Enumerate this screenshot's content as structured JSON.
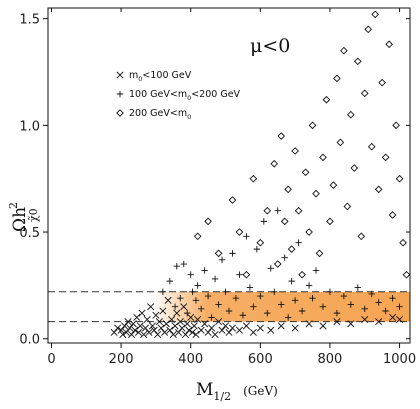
{
  "chart_data": {
    "type": "scatter",
    "title": "",
    "annotation": "μ<0",
    "xlabel": {
      "main": "M",
      "sub": "1/2",
      "unit": "(GeV)"
    },
    "ylabel": {
      "main": "Ωh",
      "sub": "χ̃0",
      "sup": "2"
    },
    "xlim": [
      -10,
      1030
    ],
    "ylim": [
      -0.02,
      1.55
    ],
    "xticks": [
      0,
      200,
      400,
      600,
      800,
      1000
    ],
    "yticks": [
      0.0,
      0.5,
      1.0,
      1.5
    ],
    "xtick_labels": [
      "0",
      "200",
      "400",
      "600",
      "800",
      "1000"
    ],
    "ytick_labels": [
      "0.0",
      "0.5",
      "1.0",
      "1.5"
    ],
    "grid": false,
    "legend_position": "top-left",
    "band": {
      "y_low": 0.08,
      "y_high": 0.22,
      "x_start": 300,
      "x_end": 1030,
      "color": "#f5a04a"
    },
    "reference_lines": [
      0.08,
      0.22
    ],
    "legend": [
      {
        "marker": "x",
        "label": "m",
        "sub": "0",
        "suffix": "<100 GeV"
      },
      {
        "marker": "plus",
        "label": "100 GeV<m",
        "sub": "0",
        "suffix": "<200 GeV"
      },
      {
        "marker": "diamond",
        "label": "200 GeV<m",
        "sub": "0",
        "suffix": ""
      }
    ],
    "series": [
      {
        "marker": "x",
        "points": [
          [
            180,
            0.03
          ],
          [
            190,
            0.05
          ],
          [
            200,
            0.04
          ],
          [
            205,
            0.02
          ],
          [
            210,
            0.06
          ],
          [
            215,
            0.03
          ],
          [
            220,
            0.08
          ],
          [
            225,
            0.05
          ],
          [
            230,
            0.02
          ],
          [
            235,
            0.07
          ],
          [
            240,
            0.04
          ],
          [
            245,
            0.1
          ],
          [
            250,
            0.03
          ],
          [
            255,
            0.06
          ],
          [
            260,
            0.12
          ],
          [
            265,
            0.02
          ],
          [
            270,
            0.05
          ],
          [
            275,
            0.09
          ],
          [
            280,
            0.03
          ],
          [
            285,
            0.15
          ],
          [
            290,
            0.06
          ],
          [
            295,
            0.04
          ],
          [
            300,
            0.11
          ],
          [
            305,
            0.02
          ],
          [
            310,
            0.08
          ],
          [
            315,
            0.05
          ],
          [
            320,
            0.13
          ],
          [
            325,
            0.03
          ],
          [
            330,
            0.07
          ],
          [
            335,
            0.18
          ],
          [
            340,
            0.04
          ],
          [
            345,
            0.09
          ],
          [
            350,
            0.02
          ],
          [
            355,
            0.06
          ],
          [
            360,
            0.12
          ],
          [
            365,
            0.03
          ],
          [
            370,
            0.08
          ],
          [
            375,
            0.05
          ],
          [
            380,
            0.15
          ],
          [
            385,
            0.02
          ],
          [
            390,
            0.07
          ],
          [
            395,
            0.04
          ],
          [
            400,
            0.1
          ],
          [
            405,
            0.03
          ],
          [
            410,
            0.06
          ],
          [
            415,
            0.02
          ],
          [
            420,
            0.09
          ],
          [
            430,
            0.04
          ],
          [
            440,
            0.07
          ],
          [
            450,
            0.03
          ],
          [
            460,
            0.05
          ],
          [
            470,
            0.02
          ],
          [
            480,
            0.08
          ],
          [
            490,
            0.04
          ],
          [
            500,
            0.06
          ],
          [
            510,
            0.03
          ],
          [
            520,
            0.05
          ],
          [
            540,
            0.04
          ],
          [
            560,
            0.06
          ],
          [
            580,
            0.03
          ],
          [
            600,
            0.05
          ],
          [
            630,
            0.04
          ],
          [
            660,
            0.06
          ],
          [
            700,
            0.05
          ],
          [
            740,
            0.07
          ],
          [
            780,
            0.06
          ],
          [
            820,
            0.08
          ],
          [
            860,
            0.07
          ],
          [
            900,
            0.09
          ],
          [
            940,
            0.08
          ],
          [
            980,
            0.1
          ],
          [
            1000,
            0.09
          ]
        ]
      },
      {
        "marker": "plus",
        "points": [
          [
            320,
            0.22
          ],
          [
            340,
            0.27
          ],
          [
            355,
            0.15
          ],
          [
            360,
            0.34
          ],
          [
            370,
            0.19
          ],
          [
            380,
            0.35
          ],
          [
            390,
            0.12
          ],
          [
            400,
            0.3
          ],
          [
            405,
            0.22
          ],
          [
            415,
            0.18
          ],
          [
            420,
            0.25
          ],
          [
            430,
            0.14
          ],
          [
            440,
            0.32
          ],
          [
            450,
            0.2
          ],
          [
            460,
            0.1
          ],
          [
            470,
            0.28
          ],
          [
            480,
            0.16
          ],
          [
            490,
            0.37
          ],
          [
            500,
            0.22
          ],
          [
            510,
            0.13
          ],
          [
            520,
            0.4
          ],
          [
            530,
            0.19
          ],
          [
            540,
            0.3
          ],
          [
            550,
            0.11
          ],
          [
            560,
            0.48
          ],
          [
            570,
            0.24
          ],
          [
            580,
            0.15
          ],
          [
            590,
            0.42
          ],
          [
            600,
            0.2
          ],
          [
            610,
            0.55
          ],
          [
            620,
            0.12
          ],
          [
            630,
            0.33
          ],
          [
            640,
            0.22
          ],
          [
            650,
            0.6
          ],
          [
            660,
            0.16
          ],
          [
            670,
            0.38
          ],
          [
            680,
            0.1
          ],
          [
            690,
            0.27
          ],
          [
            700,
            0.18
          ],
          [
            710,
            0.45
          ],
          [
            720,
            0.13
          ],
          [
            740,
            0.25
          ],
          [
            750,
            0.19
          ],
          [
            760,
            0.32
          ],
          [
            780,
            0.15
          ],
          [
            800,
            0.22
          ],
          [
            820,
            0.12
          ],
          [
            840,
            0.2
          ],
          [
            860,
            0.16
          ],
          [
            880,
            0.24
          ],
          [
            900,
            0.14
          ],
          [
            920,
            0.21
          ],
          [
            940,
            0.17
          ],
          [
            960,
            0.13
          ],
          [
            980,
            0.19
          ],
          [
            1000,
            0.15
          ]
        ]
      },
      {
        "marker": "diamond",
        "points": [
          [
            420,
            0.48
          ],
          [
            450,
            0.55
          ],
          [
            480,
            0.4
          ],
          [
            520,
            0.65
          ],
          [
            540,
            0.5
          ],
          [
            560,
            0.3
          ],
          [
            580,
            0.75
          ],
          [
            600,
            0.45
          ],
          [
            620,
            0.6
          ],
          [
            640,
            0.82
          ],
          [
            650,
            0.35
          ],
          [
            660,
            0.95
          ],
          [
            670,
            0.55
          ],
          [
            680,
            0.7
          ],
          [
            690,
            0.42
          ],
          [
            700,
            0.88
          ],
          [
            710,
            0.6
          ],
          [
            720,
            0.3
          ],
          [
            730,
            0.78
          ],
          [
            740,
            0.5
          ],
          [
            750,
            1.0
          ],
          [
            760,
            0.68
          ],
          [
            770,
            0.4
          ],
          [
            780,
            0.85
          ],
          [
            790,
            1.12
          ],
          [
            800,
            0.55
          ],
          [
            810,
            0.72
          ],
          [
            820,
            1.22
          ],
          [
            830,
            0.92
          ],
          [
            840,
            1.35
          ],
          [
            850,
            0.62
          ],
          [
            860,
            1.05
          ],
          [
            870,
            0.8
          ],
          [
            880,
            1.3
          ],
          [
            890,
            0.48
          ],
          [
            900,
            1.15
          ],
          [
            910,
            1.45
          ],
          [
            920,
            0.9
          ],
          [
            930,
            1.52
          ],
          [
            940,
            0.7
          ],
          [
            950,
            1.2
          ],
          [
            960,
            0.85
          ],
          [
            970,
            1.38
          ],
          [
            980,
            0.58
          ],
          [
            990,
            1.0
          ],
          [
            1000,
            0.75
          ],
          [
            1010,
            0.45
          ],
          [
            1020,
            0.3
          ]
        ]
      }
    ]
  }
}
